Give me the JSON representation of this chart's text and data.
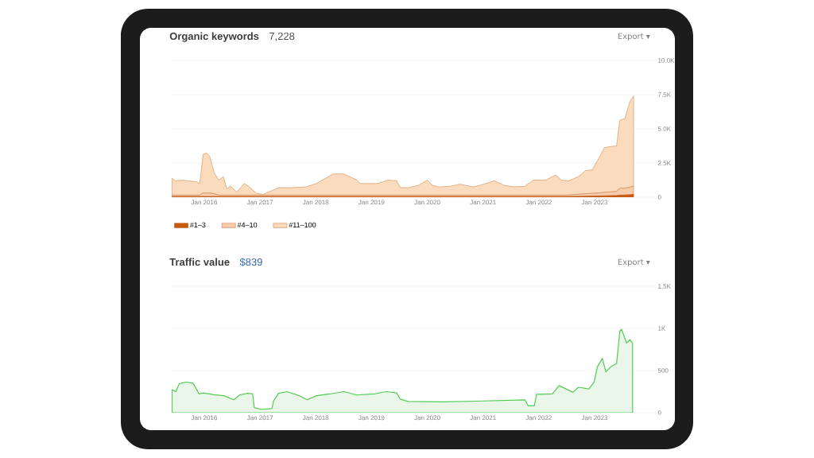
{
  "chart_data": [
    {
      "type": "area",
      "stacked": true,
      "title": "Organic keywords",
      "subtitle": "7,228",
      "annotations": [
        "Export ▾"
      ],
      "legend": "bottom",
      "grid": "y",
      "x": [
        "2015-06-03",
        "2015-06-25",
        "2015-08-11",
        "2015-11-10",
        "2015-12-02",
        "2015-12-24",
        "2016-01-15",
        "2016-02-06",
        "2016-03-07",
        "2016-04-05",
        "2016-05-05",
        "2016-05-27",
        "2016-06-21",
        "2016-07-31",
        "2016-09-20",
        "2016-10-23",
        "2016-12-05",
        "2017-01-23",
        "2017-03-07",
        "2017-05-01",
        "2017-07-31",
        "2017-10-27",
        "2018-01-05",
        "2018-04-23",
        "2018-07-02",
        "2018-09-27",
        "2018-10-19",
        "2019-02-10",
        "2019-04-16",
        "2019-06-14",
        "2019-07-06",
        "2019-08-29",
        "2019-11-06",
        "2020-01-01",
        "2020-02-03",
        "2020-03-18",
        "2020-05-27",
        "2020-07-31",
        "2020-10-31",
        "2021-01-05",
        "2021-03-14",
        "2021-05-16",
        "2021-07-24",
        "2021-10-01",
        "2021-11-24",
        "2022-02-14",
        "2022-04-20",
        "2022-05-27",
        "2022-07-13",
        "2022-09-17",
        "2022-11-03",
        "2022-12-16",
        "2023-01-30",
        "2023-03-04",
        "2023-04-16",
        "2023-05-23",
        "2023-06-14",
        "2023-07-17",
        "2023-08-19",
        "2023-09-06",
        "2023-09-13"
      ],
      "series": [
        {
          "name": "#1–3",
          "color": "#c55a11",
          "values": [
            50,
            50,
            50,
            50,
            50,
            50,
            50,
            50,
            50,
            50,
            50,
            50,
            50,
            50,
            50,
            50,
            50,
            50,
            50,
            50,
            50,
            50,
            50,
            50,
            50,
            50,
            50,
            50,
            50,
            50,
            50,
            50,
            50,
            50,
            50,
            50,
            50,
            50,
            50,
            50,
            50,
            50,
            50,
            50,
            50,
            50,
            50,
            50,
            50,
            60,
            70,
            80,
            90,
            100,
            110,
            120,
            150,
            160,
            180,
            200,
            200
          ]
        },
        {
          "name": "#4–10",
          "color": "#f8cbad",
          "values": [
            100,
            100,
            100,
            100,
            100,
            250,
            250,
            250,
            200,
            100,
            100,
            100,
            100,
            100,
            100,
            100,
            100,
            100,
            100,
            100,
            100,
            100,
            100,
            100,
            100,
            100,
            100,
            100,
            100,
            100,
            100,
            100,
            100,
            100,
            100,
            100,
            100,
            100,
            100,
            100,
            100,
            100,
            100,
            100,
            100,
            100,
            100,
            100,
            100,
            150,
            180,
            200,
            220,
            250,
            280,
            300,
            500,
            500,
            550,
            600,
            600
          ]
        },
        {
          "name": "#11–100",
          "color": "#fbdbbd",
          "values": [
            1225,
            1050,
            1100,
            975,
            850,
            2825,
            2950,
            2700,
            1500,
            1100,
            1350,
            475,
            650,
            225,
            850,
            600,
            150,
            50,
            275,
            550,
            550,
            600,
            850,
            1550,
            1550,
            1100,
            850,
            850,
            1100,
            1050,
            550,
            550,
            725,
            1100,
            725,
            600,
            650,
            800,
            600,
            800,
            1050,
            725,
            600,
            650,
            1100,
            1100,
            1475,
            1100,
            1050,
            1290,
            1700,
            1720,
            2565,
            3275,
            3310,
            3330,
            4975,
            5090,
            6270,
            6500,
            6600
          ]
        }
      ],
      "xlim": [
        "2015-06-01",
        "2024-02-01"
      ],
      "xticks": [
        {
          "value": "2016-01",
          "label": "Jan 2016"
        },
        {
          "value": "2017-01",
          "label": "Jan 2017"
        },
        {
          "value": "2018-01",
          "label": "Jan 2018"
        },
        {
          "value": "2019-01",
          "label": "Jan 2019"
        },
        {
          "value": "2020-01",
          "label": "Jan 2020"
        },
        {
          "value": "2021-01",
          "label": "Jan 2021"
        },
        {
          "value": "2022-01",
          "label": "Jan 2022"
        },
        {
          "value": "2023-01",
          "label": "Jan 2023"
        }
      ],
      "ylim": [
        0,
        10000
      ],
      "yticks": [
        0,
        {
          "value": 2500,
          "label": "2.5K"
        },
        {
          "value": 5000,
          "label": "5.0K"
        },
        {
          "value": 7500,
          "label": "7.5K"
        },
        {
          "value": 10000,
          "label": "10.0K"
        }
      ]
    },
    {
      "type": "area",
      "title": "Traffic value",
      "subtitle": "$839",
      "annotations": [
        "Export ▾"
      ],
      "grid": "y",
      "color": "#ebf6eb",
      "x": [
        "2015-06-03",
        "2015-06-28",
        "2015-07-20",
        "2015-09-02",
        "2015-10-19",
        "2015-11-10",
        "2015-11-28",
        "2015-12-24",
        "2016-03-03",
        "2016-05-08",
        "2016-07-13",
        "2016-08-19",
        "2016-10-12",
        "2016-11-14",
        "2016-11-24",
        "2017-01-08",
        "2017-03-18",
        "2017-03-29",
        "2017-05-01",
        "2017-06-25",
        "2017-09-13",
        "2017-11-06",
        "2018-01-05",
        "2018-04-02",
        "2018-07-02",
        "2018-09-27",
        "2019-01-19",
        "2019-04-05",
        "2019-06-14",
        "2019-07-06",
        "2019-08-29",
        "2020-04-13",
        "2020-11-21",
        "2021-10-01",
        "2021-10-23",
        "2021-12-02",
        "2021-12-16",
        "2022-03-29",
        "2022-05-12",
        "2022-08-11",
        "2022-09-17",
        "2022-11-24",
        "2022-12-28",
        "2023-01-19",
        "2023-02-21",
        "2023-03-14",
        "2023-04-16",
        "2023-05-23",
        "2023-06-14",
        "2023-06-25",
        "2023-07-28",
        "2023-08-19",
        "2023-09-06"
      ],
      "values": [
        274,
        250,
        343,
        363,
        350,
        282,
        222,
        234,
        214,
        202,
        153,
        210,
        230,
        222,
        60,
        40,
        48,
        141,
        230,
        250,
        202,
        153,
        202,
        222,
        250,
        210,
        222,
        250,
        234,
        161,
        133,
        129,
        137,
        153,
        81,
        81,
        218,
        222,
        322,
        242,
        302,
        282,
        363,
        544,
        645,
        484,
        544,
        584,
        967,
        990,
        826,
        867,
        826
      ],
      "xlim": [
        "2015-06-01",
        "2024-02-01"
      ],
      "xticks": [
        {
          "value": "2016-01",
          "label": "Jan 2016"
        },
        {
          "value": "2017-01",
          "label": "Jan 2017"
        },
        {
          "value": "2018-01",
          "label": "Jan 2018"
        },
        {
          "value": "2019-01",
          "label": "Jan 2019"
        },
        {
          "value": "2020-01",
          "label": "Jan 2020"
        },
        {
          "value": "2021-01",
          "label": "Jan 2021"
        },
        {
          "value": "2022-01",
          "label": "Jan 2022"
        },
        {
          "value": "2023-01",
          "label": "Jan 2023"
        }
      ],
      "ylim": [
        0,
        1500
      ],
      "yticks": [
        0,
        500,
        {
          "value": 1000,
          "label": "1K"
        },
        {
          "value": 1500,
          "label": "1.5K"
        }
      ]
    }
  ]
}
